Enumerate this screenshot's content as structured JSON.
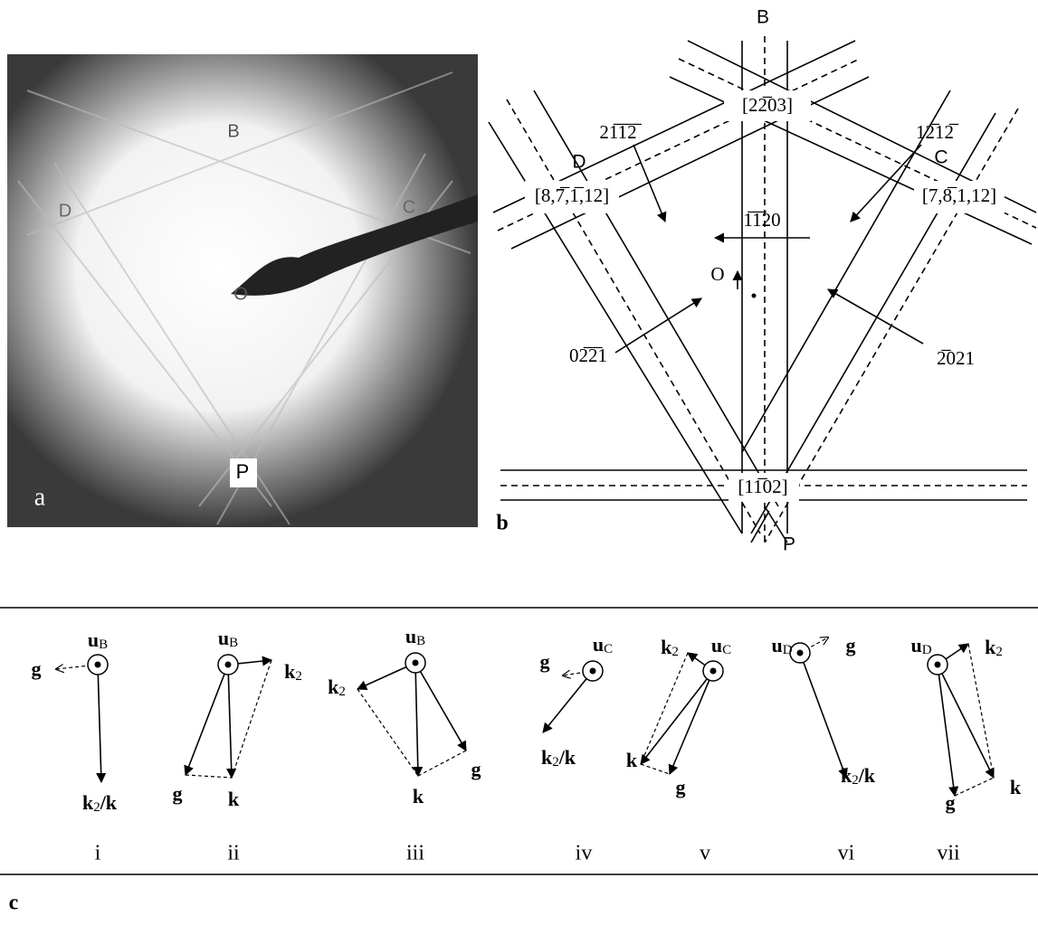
{
  "panel_a": {
    "label": "a",
    "points": [
      "B",
      "D",
      "C",
      "O",
      "P"
    ]
  },
  "panel_b": {
    "label": "b",
    "poles": [
      "B",
      "D",
      "C",
      "P"
    ],
    "origin": "O",
    "zone_axes": [
      "[22̅03]",
      "[8,7̅,1̅,12]",
      "[7,8̅,1,12]",
      "[11̅02]"
    ],
    "traces": [
      "21̅1̅2̅",
      "12̅12̅",
      "1̅1̅20",
      "02̅2̅1",
      "2̅021"
    ]
  },
  "panel_c": {
    "label": "c",
    "diagrams": [
      {
        "numeral": "i",
        "labels": [
          {
            "text": "u",
            "sub": "B"
          },
          {
            "text": "g"
          },
          {
            "text": "k",
            "sub": "2",
            "after": "/k"
          }
        ]
      },
      {
        "numeral": "ii",
        "labels": [
          {
            "text": "u",
            "sub": "B"
          },
          {
            "text": "g"
          },
          {
            "text": "k"
          },
          {
            "text": "k",
            "sub": "2"
          }
        ]
      },
      {
        "numeral": "iii",
        "labels": [
          {
            "text": "u",
            "sub": "B"
          },
          {
            "text": "k",
            "sub": "2"
          },
          {
            "text": "g"
          },
          {
            "text": "k"
          }
        ]
      },
      {
        "numeral": "iv",
        "labels": [
          {
            "text": "u",
            "sub": "C"
          },
          {
            "text": "g"
          },
          {
            "text": "k",
            "sub": "2",
            "after": "/k"
          }
        ]
      },
      {
        "numeral": "v",
        "labels": [
          {
            "text": "u",
            "sub": "C"
          },
          {
            "text": "k",
            "sub": "2"
          },
          {
            "text": "k"
          },
          {
            "text": "g"
          }
        ]
      },
      {
        "numeral": "vi",
        "labels": [
          {
            "text": "u",
            "sub": "D"
          },
          {
            "text": "g"
          },
          {
            "text": "k",
            "sub": "2",
            "after": "/k"
          }
        ]
      },
      {
        "numeral": "vii",
        "labels": [
          {
            "text": "u",
            "sub": "D"
          },
          {
            "text": "k",
            "sub": "2"
          },
          {
            "text": "g"
          },
          {
            "text": "k"
          }
        ]
      }
    ]
  }
}
